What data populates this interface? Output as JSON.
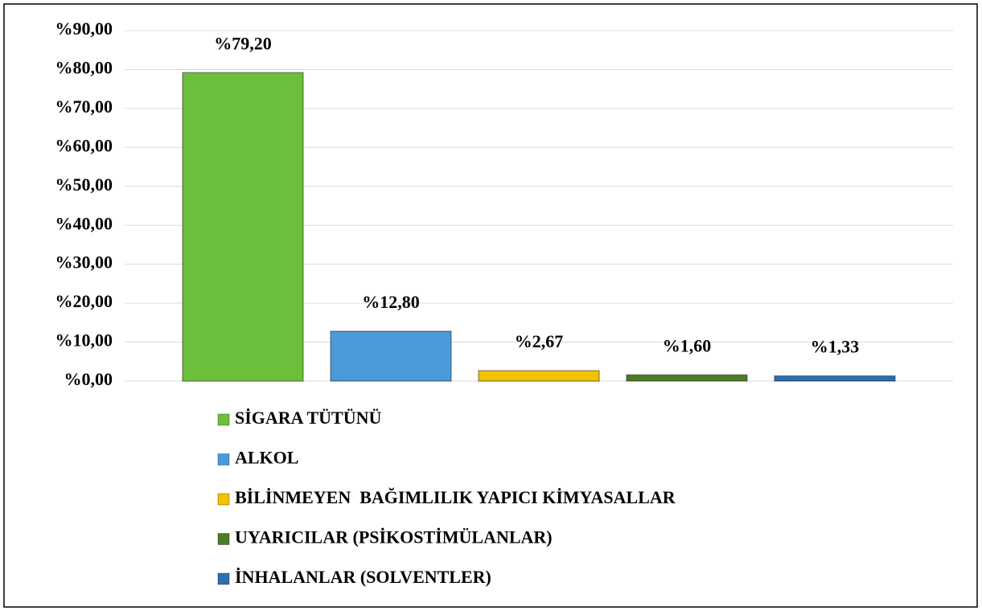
{
  "chart_data": {
    "type": "bar",
    "ylim": [
      0,
      90
    ],
    "yticks": [
      {
        "value": 0,
        "label": "%0,00"
      },
      {
        "value": 10,
        "label": "%10,00"
      },
      {
        "value": 20,
        "label": "%20,00"
      },
      {
        "value": 30,
        "label": "%30,00"
      },
      {
        "value": 40,
        "label": "%40,00"
      },
      {
        "value": 50,
        "label": "%50,00"
      },
      {
        "value": 60,
        "label": "%60,00"
      },
      {
        "value": 70,
        "label": "%70,00"
      },
      {
        "value": 80,
        "label": "%80,00"
      },
      {
        "value": 90,
        "label": "%90,00"
      }
    ],
    "grid": true,
    "legend": "bottom",
    "series": [
      {
        "name": "SİGARA TÜTÜNÜ",
        "color": "#6cbf3a",
        "values": [
          79.2
        ],
        "value_labels": [
          "%79,20"
        ]
      },
      {
        "name": "ALKOL",
        "color": "#4b9bd9",
        "values": [
          12.8
        ],
        "value_labels": [
          "%12,80"
        ]
      },
      {
        "name": "BİLİNMEYEN  BAĞIMLILIK YAPICI KİMYASALLAR",
        "color": "#f2c200",
        "values": [
          2.67
        ],
        "value_labels": [
          "%2,67"
        ]
      },
      {
        "name": "UYARICILAR (PSİKOSTİMÜLANLAR)",
        "color": "#4e7b27",
        "values": [
          1.6
        ],
        "value_labels": [
          "%1,60"
        ]
      },
      {
        "name": "İNHALANLAR (SOLVENTLER)",
        "color": "#2f6db4",
        "values": [
          1.33
        ],
        "value_labels": [
          "%1,33"
        ]
      }
    ]
  }
}
